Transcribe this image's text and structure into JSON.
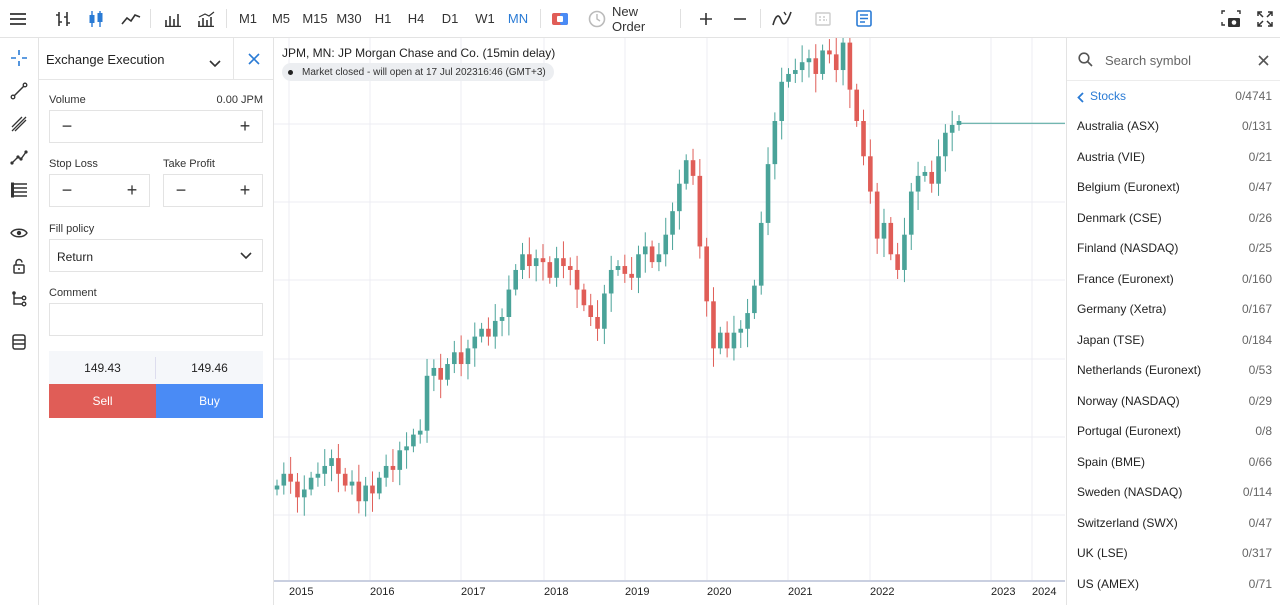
{
  "toolbar": {
    "timeframes": [
      "M1",
      "M5",
      "M15",
      "M30",
      "H1",
      "H4",
      "D1",
      "W1",
      "MN"
    ],
    "active_timeframe": "MN",
    "new_order_label": "New Order"
  },
  "order_panel": {
    "title": "Exchange Execution",
    "volume_label": "Volume",
    "volume_value": "0.00 JPM",
    "stop_loss_label": "Stop Loss",
    "take_profit_label": "Take Profit",
    "fill_policy_label": "Fill policy",
    "fill_policy_value": "Return",
    "comment_label": "Comment",
    "bid": "149.43",
    "ask": "149.46",
    "sell_label": "Sell",
    "buy_label": "Buy"
  },
  "chart": {
    "title": "JPM, MN: JP Morgan Chase and Co. (15min delay)",
    "market_status": "Market closed - will open at 17 Jul 202316:46 (GMT+3)",
    "x_labels": [
      "2015",
      "2016",
      "2017",
      "2018",
      "2019",
      "2020",
      "2021",
      "2022",
      "2023",
      "2024"
    ],
    "colors": {
      "up": "#4aa399",
      "down": "#e05d57",
      "grid": "#ececf3",
      "price_line": "#4aa399"
    }
  },
  "chart_data": {
    "type": "candlestick",
    "x_labels": [
      "2015",
      "2016",
      "2017",
      "2018",
      "2019",
      "2020",
      "2021",
      "2022",
      "2023",
      "2024"
    ],
    "approx_ranges": [
      {
        "period": "2015",
        "low": 50,
        "high": 70
      },
      {
        "period": "2016",
        "low": 52,
        "high": 87
      },
      {
        "period": "2017",
        "low": 80,
        "high": 107
      },
      {
        "period": "2018",
        "low": 92,
        "high": 119
      },
      {
        "period": "2019",
        "low": 95,
        "high": 141
      },
      {
        "period": "2020",
        "low": 76,
        "high": 141
      },
      {
        "period": "2021",
        "low": 100,
        "high": 172
      },
      {
        "period": "2022",
        "low": 101,
        "high": 169
      },
      {
        "period": "2023",
        "low": 123,
        "high": 150
      }
    ],
    "last_price": 149.43
  },
  "symbols": {
    "search_placeholder": "Search symbol",
    "category": "Stocks",
    "category_count": "0/4741",
    "items": [
      {
        "name": "Australia (ASX)",
        "count": "0/131"
      },
      {
        "name": "Austria (VIE)",
        "count": "0/21"
      },
      {
        "name": "Belgium (Euronext)",
        "count": "0/47"
      },
      {
        "name": "Denmark (CSE)",
        "count": "0/26"
      },
      {
        "name": "Finland (NASDAQ)",
        "count": "0/25"
      },
      {
        "name": "France (Euronext)",
        "count": "0/160"
      },
      {
        "name": "Germany (Xetra)",
        "count": "0/167"
      },
      {
        "name": "Japan (TSE)",
        "count": "0/184"
      },
      {
        "name": "Netherlands (Euronext)",
        "count": "0/53"
      },
      {
        "name": "Norway (NASDAQ)",
        "count": "0/29"
      },
      {
        "name": "Portugal (Euronext)",
        "count": "0/8"
      },
      {
        "name": "Spain (BME)",
        "count": "0/66"
      },
      {
        "name": "Sweden (NASDAQ)",
        "count": "0/114"
      },
      {
        "name": "Switzerland (SWX)",
        "count": "0/47"
      },
      {
        "name": "UK (LSE)",
        "count": "0/317"
      },
      {
        "name": "US (AMEX)",
        "count": "0/71"
      }
    ]
  }
}
